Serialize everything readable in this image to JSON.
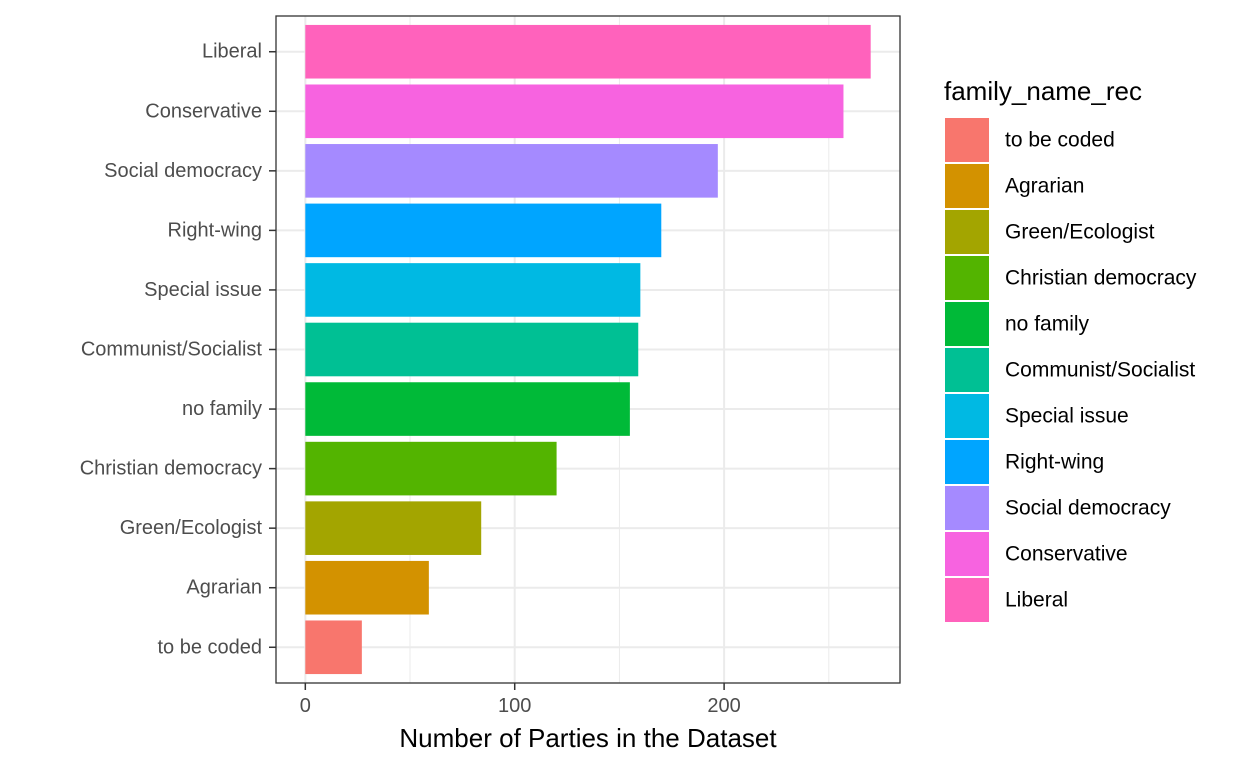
{
  "chart_data": {
    "type": "bar",
    "orientation": "horizontal",
    "categories": [
      "to be coded",
      "Agrarian",
      "Green/Ecologist",
      "Christian democracy",
      "no family",
      "Communist/Socialist",
      "Special issue",
      "Right-wing",
      "Social democracy",
      "Conservative",
      "Liberal"
    ],
    "values": [
      27,
      59,
      84,
      120,
      155,
      159,
      160,
      170,
      197,
      257,
      270
    ],
    "colors": [
      "#F8766D",
      "#D39200",
      "#A3A500",
      "#53B400",
      "#00BA38",
      "#00C094",
      "#00B9E3",
      "#00A5FF",
      "#A58AFF",
      "#F763E0",
      "#FF62BC"
    ],
    "xlabel": "Number of Parties in the Dataset",
    "ylabel": "",
    "xlim": [
      -14,
      284
    ],
    "xticks": [
      0,
      100,
      200
    ],
    "xtick_labels": [
      "0",
      "100",
      "200"
    ],
    "grid": true,
    "legend": {
      "title": "family_name_rec",
      "placement": "right",
      "entries": [
        "to be coded",
        "Agrarian",
        "Green/Ecologist",
        "Christian democracy",
        "no family",
        "Communist/Socialist",
        "Special issue",
        "Right-wing",
        "Social democracy",
        "Conservative",
        "Liberal"
      ]
    }
  }
}
